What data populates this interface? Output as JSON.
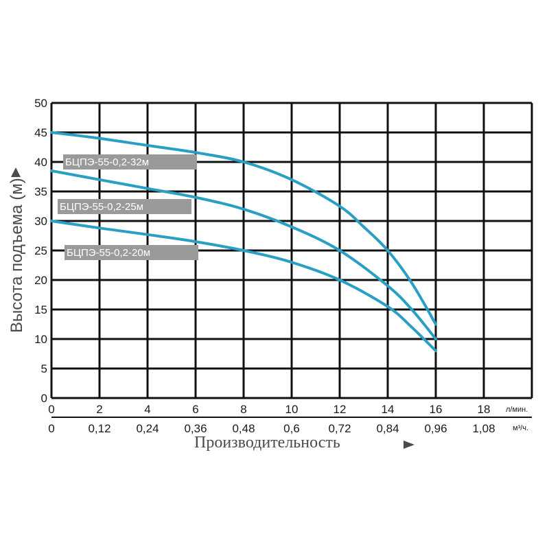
{
  "chart_data": {
    "type": "line",
    "title": "",
    "xlabel": "Производительность",
    "ylabel": "Высота подъема (м)",
    "ylim": [
      0,
      50
    ],
    "xlim": [
      0,
      20
    ],
    "y_ticks": [
      "0",
      "5",
      "10",
      "15",
      "20",
      "25",
      "30",
      "35",
      "40",
      "45",
      "50"
    ],
    "x_ticks_primary": [
      "0",
      "2",
      "4",
      "6",
      "8",
      "10",
      "12",
      "14",
      "16",
      "18"
    ],
    "x_unit_primary": "л/мин.",
    "x_ticks_secondary": [
      "0",
      "0,12",
      "0,24",
      "0,36",
      "0,48",
      "0,6",
      "0,72",
      "0,84",
      "0,96",
      "1,08"
    ],
    "x_unit_secondary": "м³/ч.",
    "grid": true,
    "series": [
      {
        "name": "БЦПЭ-55-0,2-32м",
        "color": "#2a9fc4",
        "x": [
          0,
          2,
          4,
          6,
          8,
          10,
          12,
          13,
          14,
          15,
          16
        ],
        "y": [
          45,
          44,
          42.8,
          41.6,
          40,
          37,
          32.5,
          29,
          25,
          19.5,
          12.5
        ]
      },
      {
        "name": "БЦПЭ-55-0,2-25м",
        "color": "#2a9fc4",
        "x": [
          0,
          2,
          4,
          6,
          8,
          10,
          12,
          14,
          15,
          16
        ],
        "y": [
          38.5,
          37,
          35.5,
          34,
          32,
          29,
          25,
          19,
          15,
          10
        ]
      },
      {
        "name": "БЦПЭ-55-0,2-20м",
        "color": "#2a9fc4",
        "x": [
          0,
          2,
          4,
          6,
          8,
          10,
          12,
          14,
          15,
          16
        ],
        "y": [
          30,
          28.8,
          27.7,
          26.5,
          25,
          23,
          20,
          15.5,
          12,
          8
        ]
      }
    ]
  }
}
